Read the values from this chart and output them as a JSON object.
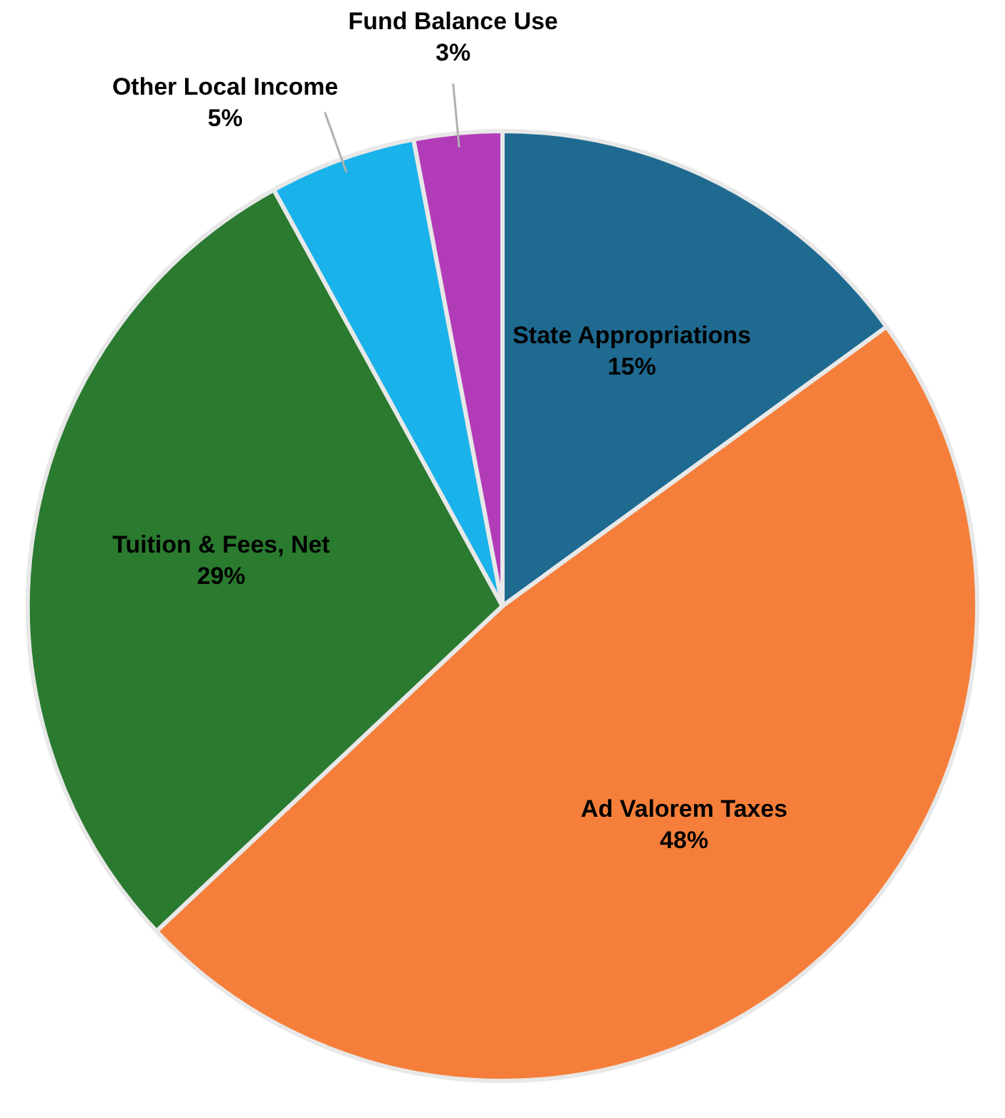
{
  "chart_data": {
    "type": "pie",
    "categories": [
      "State Appropriations",
      "Ad Valorem Taxes",
      "Tuition & Fees, Net",
      "Other Local Income",
      "Fund Balance Use"
    ],
    "values": [
      15,
      48,
      29,
      5,
      3
    ],
    "value_labels": [
      "15%",
      "48%",
      "29%",
      "5%",
      "3%"
    ],
    "colors": [
      "#1f6a90",
      "#f57f3a",
      "#2a7a30",
      "#1ab2ea",
      "#b23cb8"
    ],
    "legend": false
  }
}
